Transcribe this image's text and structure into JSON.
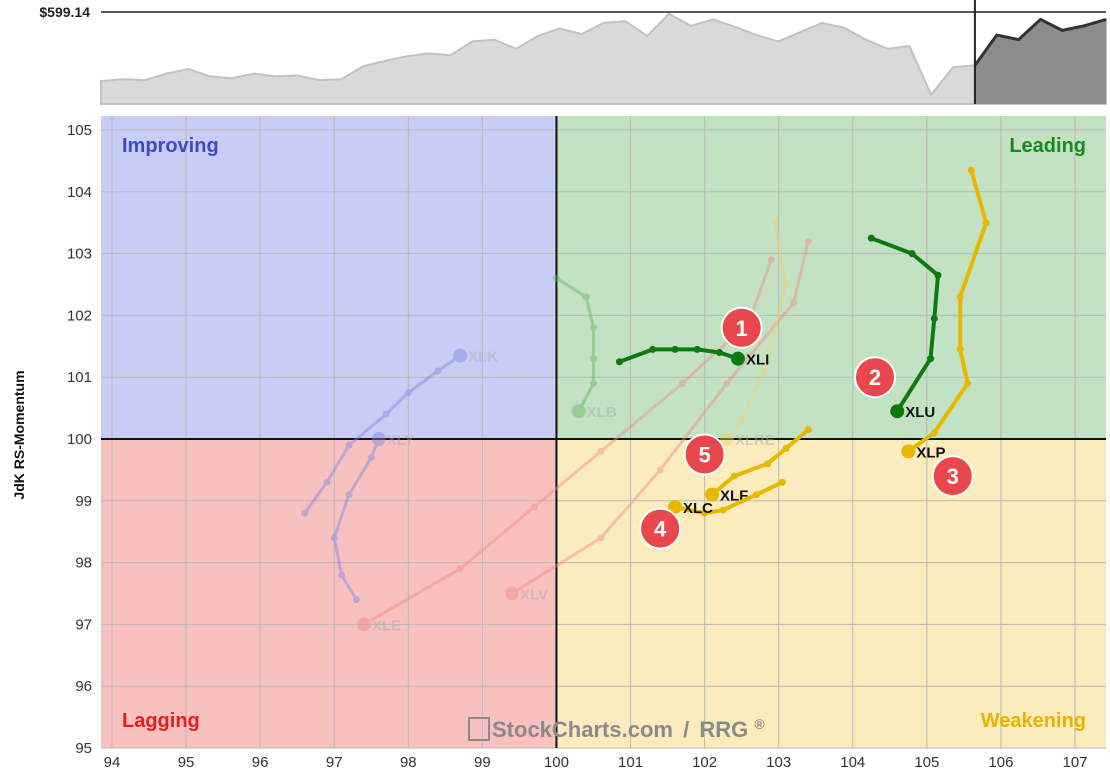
{
  "chart_data": {
    "type": "scatter",
    "subtype": "relative-rotation-graph",
    "price_panel": {
      "label": "$599.14",
      "series": [
        0.25,
        0.27,
        0.26,
        0.33,
        0.38,
        0.3,
        0.28,
        0.33,
        0.3,
        0.31,
        0.26,
        0.27,
        0.41,
        0.47,
        0.52,
        0.55,
        0.53,
        0.68,
        0.7,
        0.6,
        0.74,
        0.82,
        0.76,
        0.88,
        0.9,
        0.74,
        0.98,
        0.85,
        0.92,
        0.84,
        0.75,
        0.68,
        0.78,
        0.88,
        0.83,
        0.7,
        0.6,
        0.63,
        0.1,
        0.4,
        0.42,
        0.75,
        0.7,
        0.92,
        0.8,
        0.85,
        0.92
      ],
      "shaded_from_index": 40
    },
    "xlim": [
      94,
      107.4
    ],
    "ylim": [
      95,
      105.3
    ],
    "x_ticks": [
      94,
      95,
      96,
      97,
      98,
      99,
      100,
      101,
      102,
      103,
      104,
      105,
      106,
      107
    ],
    "y_ticks": [
      95,
      96,
      97,
      98,
      99,
      100,
      101,
      102,
      103,
      104,
      105
    ],
    "ylabel": "JdK RS-Momentum",
    "center": [
      100,
      100
    ],
    "grid": true,
    "quadrants": [
      {
        "name": "Improving",
        "color": "#3b4cc0",
        "fill": "#c8cdf5"
      },
      {
        "name": "Leading",
        "color": "#1a8a1a",
        "fill": "#c3e1c3"
      },
      {
        "name": "Lagging",
        "color": "#e32020",
        "fill": "#f9c0c0"
      },
      {
        "name": "Weakening",
        "color": "#e8b200",
        "fill": "#faecbd"
      }
    ],
    "series": [
      {
        "name": "XLK",
        "color": "#7d86e6",
        "faded": true,
        "points": [
          [
            96.6,
            98.8
          ],
          [
            96.9,
            99.3
          ],
          [
            97.2,
            99.9
          ],
          [
            97.7,
            100.4
          ],
          [
            98.0,
            100.75
          ],
          [
            98.4,
            101.1
          ],
          [
            98.7,
            101.35
          ]
        ]
      },
      {
        "name": "XLY",
        "color": "#7d86e6",
        "faded": true,
        "points": [
          [
            97.3,
            97.4
          ],
          [
            97.1,
            97.8
          ],
          [
            97.0,
            98.4
          ],
          [
            97.2,
            99.1
          ],
          [
            97.5,
            99.7
          ],
          [
            97.6,
            100.0
          ]
        ]
      },
      {
        "name": "XLE",
        "color": "#f28b8b",
        "faded": true,
        "points": [
          [
            102.9,
            102.9
          ],
          [
            102.6,
            101.9
          ],
          [
            101.7,
            100.9
          ],
          [
            100.6,
            99.8
          ],
          [
            99.7,
            98.9
          ],
          [
            98.7,
            97.9
          ],
          [
            97.4,
            97.0
          ]
        ]
      },
      {
        "name": "XLV",
        "color": "#f28b8b",
        "faded": true,
        "points": [
          [
            103.4,
            103.2
          ],
          [
            103.2,
            102.2
          ],
          [
            102.3,
            100.9
          ],
          [
            101.4,
            99.5
          ],
          [
            100.6,
            98.4
          ],
          [
            99.4,
            97.5
          ]
        ]
      },
      {
        "name": "XLRE",
        "color": "#f2d36b",
        "faded": true,
        "points": [
          [
            102.95,
            103.5
          ],
          [
            103.1,
            102.5
          ],
          [
            102.8,
            101.1
          ],
          [
            102.5,
            100.3
          ],
          [
            102.3,
            100.0
          ]
        ]
      },
      {
        "name": "XLB",
        "color": "#5fb85f",
        "faded": true,
        "points": [
          [
            100.0,
            102.6
          ],
          [
            100.4,
            102.3
          ],
          [
            100.5,
            101.8
          ],
          [
            100.5,
            101.3
          ],
          [
            100.5,
            100.9
          ],
          [
            100.3,
            100.45
          ]
        ]
      },
      {
        "name": "XLI",
        "color": "#0e7a0e",
        "faded": false,
        "points": [
          [
            100.85,
            101.25
          ],
          [
            101.3,
            101.45
          ],
          [
            101.6,
            101.45
          ],
          [
            101.9,
            101.45
          ],
          [
            102.2,
            101.4
          ],
          [
            102.45,
            101.3
          ]
        ]
      },
      {
        "name": "XLU",
        "color": "#0e7a0e",
        "faded": false,
        "points": [
          [
            104.25,
            103.25
          ],
          [
            104.8,
            103.0
          ],
          [
            105.15,
            102.65
          ],
          [
            105.1,
            101.95
          ],
          [
            105.05,
            101.3
          ],
          [
            104.6,
            100.45
          ]
        ]
      },
      {
        "name": "XLP",
        "color": "#e8b800",
        "faded": false,
        "points": [
          [
            105.6,
            104.35
          ],
          [
            105.8,
            103.5
          ],
          [
            105.45,
            102.3
          ],
          [
            105.45,
            101.45
          ],
          [
            105.55,
            100.9
          ],
          [
            105.1,
            100.1
          ],
          [
            104.75,
            99.8
          ]
        ]
      },
      {
        "name": "XLF",
        "color": "#e8b800",
        "faded": false,
        "points": [
          [
            103.4,
            100.15
          ],
          [
            103.1,
            99.85
          ],
          [
            102.85,
            99.6
          ],
          [
            102.4,
            99.4
          ],
          [
            102.1,
            99.1
          ]
        ]
      },
      {
        "name": "XLC",
        "color": "#e8b800",
        "faded": false,
        "points": [
          [
            103.05,
            99.3
          ],
          [
            102.7,
            99.1
          ],
          [
            102.25,
            98.85
          ],
          [
            102.0,
            98.8
          ],
          [
            101.6,
            98.9
          ]
        ]
      }
    ],
    "markers": [
      {
        "text": "1",
        "x": 102.5,
        "y": 101.8
      },
      {
        "text": "2",
        "x": 104.3,
        "y": 101.0
      },
      {
        "text": "3",
        "x": 105.35,
        "y": 99.4
      },
      {
        "text": "4",
        "x": 101.4,
        "y": 98.55
      },
      {
        "text": "5",
        "x": 102.0,
        "y": 99.75
      }
    ],
    "watermark": {
      "brand": "StockCharts.com",
      "sep": "/",
      "product": "RRG",
      "reg": "®"
    }
  }
}
